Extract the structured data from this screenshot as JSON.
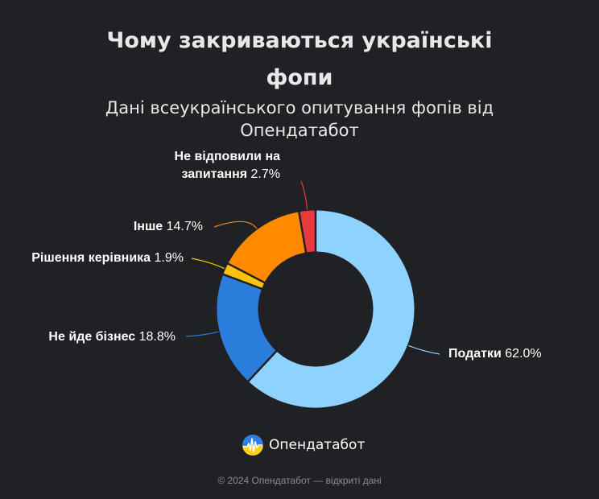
{
  "header": {
    "title_line1": "Чому закриваються українські",
    "title_line2": "фопи",
    "subtitle_line1": "Дані всеукраїнського опитування фопів від",
    "subtitle_line2": "Опендатабот"
  },
  "chart_data": {
    "type": "pie",
    "variant": "donut",
    "categories": [
      "Податки",
      "Не йде бізнес",
      "Рішення керівника",
      "Інше",
      "Не відповили на запитання"
    ],
    "values": [
      62.0,
      18.8,
      1.9,
      14.7,
      2.7
    ],
    "value_labels": [
      "62.0%",
      "18.8%",
      "1.9%",
      "14.7%",
      "2.7%"
    ],
    "label_lines": [
      [
        "Податки"
      ],
      [
        "Не йде бізнес"
      ],
      [
        "Рішення керівника"
      ],
      [
        "Інше"
      ],
      [
        "Не відповили на",
        "запитання"
      ]
    ],
    "colors": [
      "#8ed3ff",
      "#2b7ddb",
      "#ffc20a",
      "#ff8a00",
      "#e8393f"
    ],
    "title": "Чому закриваються українські фопи",
    "subtitle": "Дані всеукраїнського опитування фопів від Опендатабот",
    "legend": "none"
  },
  "brand": {
    "logo_icon": "opendatabot-logo-icon",
    "name": "Опендатабот"
  },
  "footer": {
    "text": "© 2024 Опендатабот — відкриті дані"
  }
}
